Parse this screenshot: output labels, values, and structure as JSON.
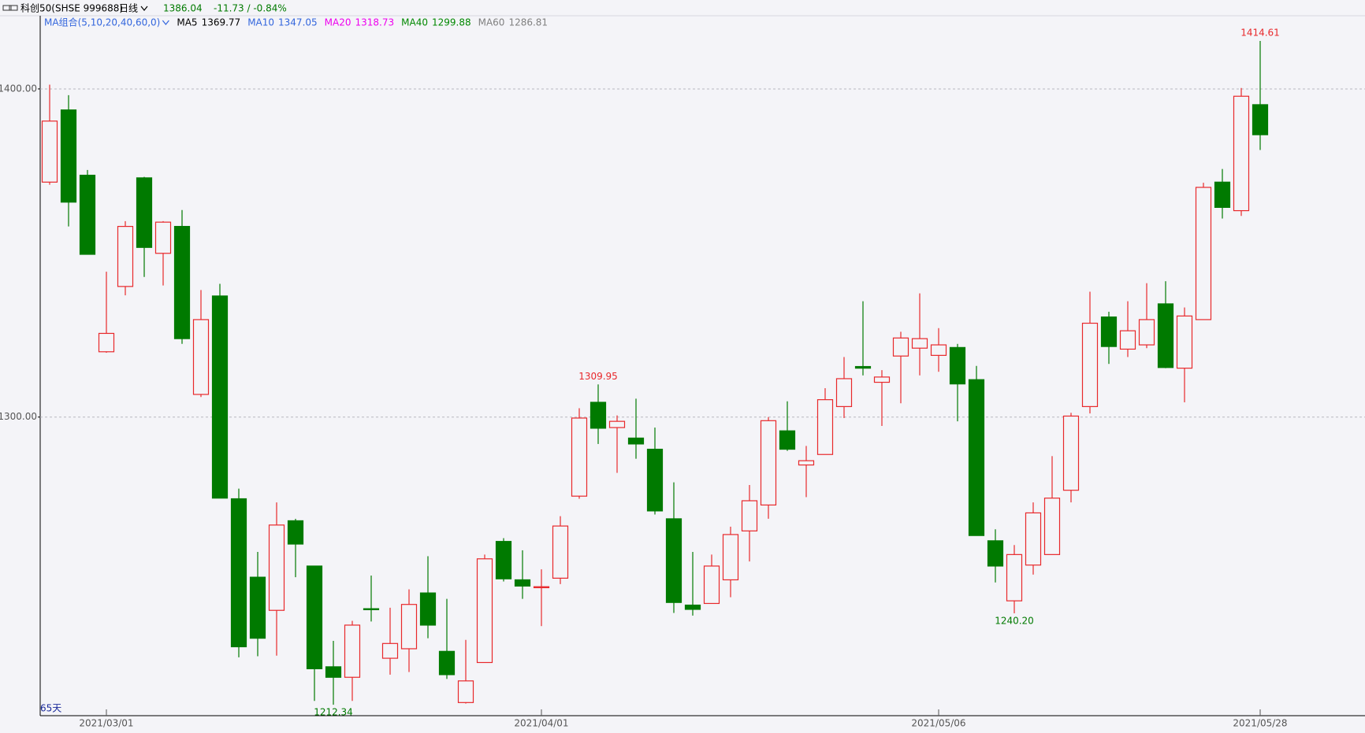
{
  "header": {
    "symbol": "科创50(SHSE 999688)",
    "period": "日线",
    "price": 1386.04,
    "change": "-11.73 / -0.84%"
  },
  "chart_data": {
    "type": "candlestick",
    "indicator": "MA组合(5,10,20,40,60,0)",
    "ma_legend": [
      {
        "name": "MA5",
        "value": 1369.77,
        "color": "#000000"
      },
      {
        "name": "MA10",
        "value": 1347.05,
        "color": "#3366dd"
      },
      {
        "name": "MA20",
        "value": 1318.73,
        "color": "#ee00ee"
      },
      {
        "name": "MA40",
        "value": 1299.88,
        "color": "#008800"
      },
      {
        "name": "MA60",
        "value": 1286.81,
        "color": "#808080"
      }
    ],
    "period_count": "65天",
    "up_color": "#e8282b",
    "down_color": "#007a00",
    "categories": [
      null,
      null,
      null,
      "2021/03/01",
      null,
      null,
      null,
      null,
      null,
      null,
      null,
      null,
      null,
      null,
      null,
      null,
      null,
      null,
      null,
      null,
      null,
      null,
      null,
      null,
      null,
      null,
      "2021/04/01",
      null,
      null,
      null,
      null,
      null,
      null,
      null,
      null,
      null,
      null,
      null,
      null,
      null,
      null,
      null,
      null,
      null,
      null,
      null,
      null,
      "2021/05/06",
      null,
      null,
      null,
      null,
      null,
      null,
      null,
      null,
      null,
      null,
      null,
      null,
      null,
      null,
      null,
      null,
      "2021/05/28"
    ],
    "open": [
      1371.6,
      1393.6,
      1373.7,
      1319.9,
      1339.8,
      1372.9,
      1349.9,
      1358.1,
      1306.9,
      1336.9,
      1275.1,
      1251.2,
      1241.1,
      1268.4,
      1254.6,
      1223.9,
      1220.7,
      1241.6,
      1226.5,
      1229.4,
      1246.4,
      1228.6,
      1213.0,
      1225.2,
      1262.1,
      1250.4,
      1248.0,
      1250.9,
      1275.9,
      1304.5,
      1296.8,
      1293.6,
      1290.2,
      1269.0,
      1242.7,
      1243.2,
      1250.4,
      1265.3,
      1273.2,
      1295.8,
      1285.4,
      1288.6,
      1303.2,
      1315.4,
      1310.6,
      1318.6,
      1321.0,
      1318.8,
      1321.2,
      1311.4,
      1262.3,
      1244.0,
      1254.9,
      1258.1,
      1277.7,
      1303.2,
      1330.5,
      1320.7,
      1322.0,
      1334.5,
      1314.9,
      1329.7,
      1371.6,
      1362.9,
      1395.2
    ],
    "high": [
      1401.3,
      1398.1,
      1375.3,
      1344.3,
      1359.7,
      1373.2,
      1359.7,
      1363.1,
      1338.7,
      1340.6,
      1278.2,
      1258.9,
      1274.0,
      1269.0,
      1254.6,
      1231.8,
      1237.9,
      1251.7,
      1241.9,
      1247.5,
      1257.6,
      1244.6,
      1232.1,
      1258.1,
      1263.1,
      1259.4,
      1253.6,
      1269.8,
      1302.7,
      1309.95,
      1300.5,
      1305.6,
      1296.8,
      1280.1,
      1258.9,
      1258.1,
      1266.6,
      1279.3,
      1300.0,
      1304.8,
      1291.2,
      1308.8,
      1318.3,
      1335.3,
      1314.3,
      1326.0,
      1337.7,
      1327.1,
      1322.3,
      1315.6,
      1265.8,
      1261.0,
      1274.0,
      1288.1,
      1301.3,
      1338.2,
      1332.1,
      1335.3,
      1340.8,
      1341.4,
      1333.4,
      1371.4,
      1375.6,
      1400.3,
      1414.61
    ],
    "low": [
      1370.8,
      1358.1,
      1349.6,
      1319.6,
      1337.1,
      1342.7,
      1340.1,
      1322.3,
      1306.1,
      1275.3,
      1226.8,
      1227.1,
      1227.3,
      1251.2,
      1213.5,
      1212.34,
      1213.5,
      1237.7,
      1221.5,
      1222.3,
      1232.6,
      1220.2,
      1212.7,
      1225.2,
      1249.9,
      1244.6,
      1236.3,
      1249.1,
      1275.1,
      1291.8,
      1283.0,
      1287.3,
      1270.3,
      1240.3,
      1239.5,
      1243.2,
      1245.1,
      1256.0,
      1269.0,
      1289.7,
      1275.6,
      1288.6,
      1299.7,
      1312.7,
      1297.3,
      1304.2,
      1312.7,
      1313.8,
      1298.7,
      1263.9,
      1249.6,
      1240.2,
      1252.0,
      1258.1,
      1274.0,
      1301.1,
      1316.2,
      1318.3,
      1321.0,
      1314.9,
      1304.5,
      1329.7,
      1360.5,
      1361.3,
      1381.4
    ],
    "close": [
      1390.2,
      1365.5,
      1349.6,
      1325.5,
      1358.1,
      1351.7,
      1359.4,
      1323.9,
      1329.7,
      1275.3,
      1230.0,
      1232.6,
      1267.1,
      1261.3,
      1223.3,
      1220.7,
      1236.6,
      1241.3,
      1231.0,
      1242.9,
      1236.6,
      1221.5,
      1219.6,
      1256.8,
      1250.7,
      1248.5,
      1248.3,
      1266.8,
      1299.7,
      1296.6,
      1298.7,
      1291.8,
      1271.4,
      1243.5,
      1241.4,
      1254.6,
      1264.2,
      1274.5,
      1298.9,
      1290.2,
      1286.7,
      1305.3,
      1311.7,
      1314.9,
      1312.2,
      1324.1,
      1323.9,
      1322.0,
      1310.1,
      1263.9,
      1254.6,
      1258.1,
      1270.8,
      1275.3,
      1300.3,
      1328.6,
      1321.5,
      1326.3,
      1329.7,
      1315.1,
      1330.8,
      1370.0,
      1363.9,
      1397.77,
      1386.04
    ],
    "high_labels": [
      null,
      null,
      null,
      null,
      null,
      null,
      null,
      null,
      null,
      null,
      null,
      null,
      null,
      null,
      null,
      null,
      null,
      null,
      null,
      null,
      null,
      null,
      null,
      null,
      null,
      null,
      null,
      null,
      null,
      "1309.95",
      null,
      null,
      null,
      null,
      null,
      null,
      null,
      null,
      null,
      null,
      null,
      null,
      null,
      null,
      null,
      null,
      null,
      null,
      null,
      null,
      null,
      null,
      null,
      null,
      null,
      null,
      null,
      null,
      null,
      null,
      null,
      null,
      null,
      null,
      "1414.61"
    ],
    "low_labels": [
      null,
      null,
      null,
      null,
      null,
      null,
      null,
      null,
      null,
      null,
      null,
      null,
      null,
      null,
      null,
      "1212.34",
      null,
      null,
      null,
      null,
      null,
      null,
      null,
      null,
      null,
      null,
      null,
      null,
      null,
      null,
      null,
      null,
      null,
      null,
      null,
      null,
      null,
      null,
      null,
      null,
      null,
      null,
      null,
      null,
      null,
      null,
      null,
      null,
      null,
      null,
      null,
      "1240.20",
      null,
      null,
      null,
      null,
      null,
      null,
      null,
      null,
      null,
      null,
      null,
      null,
      null
    ],
    "ylim": [
      1209,
      1422.3
    ],
    "yticks": [
      {
        "value": 1300,
        "label": "1300.00"
      },
      {
        "value": 1400,
        "label": "1400.00"
      }
    ],
    "grid": true
  }
}
